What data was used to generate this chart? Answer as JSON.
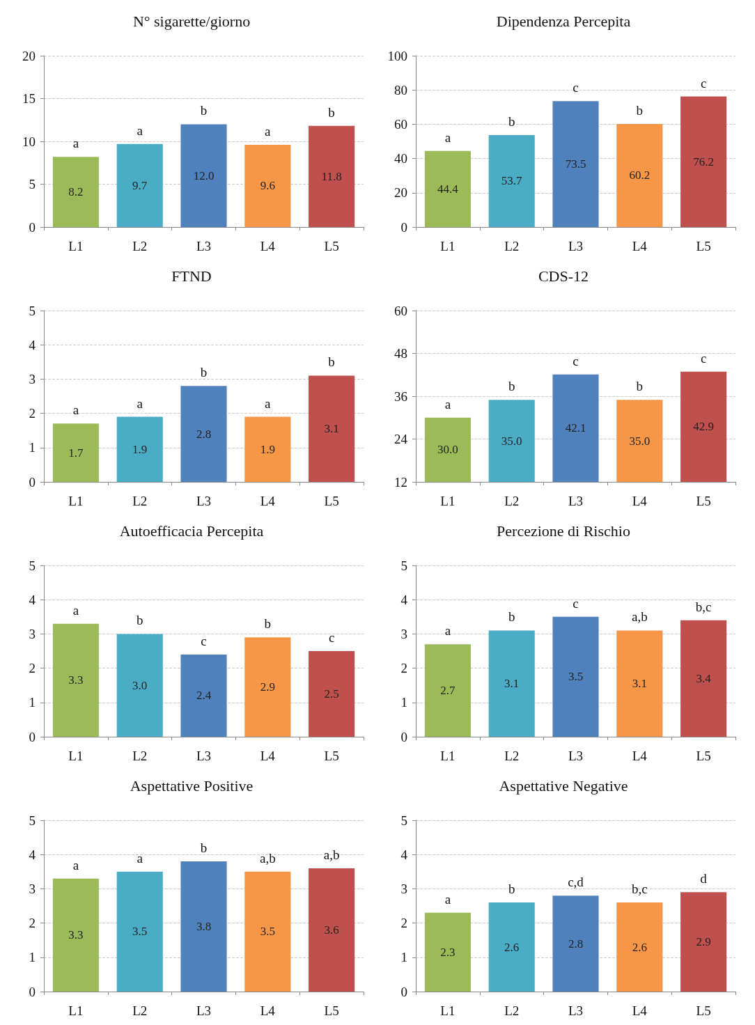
{
  "chart_data": [
    {
      "type": "bar",
      "title": "N° sigarette/giorno",
      "categories": [
        "L1",
        "L2",
        "L3",
        "L4",
        "L5"
      ],
      "values": [
        8.2,
        9.7,
        12.0,
        9.6,
        11.8
      ],
      "value_labels": [
        "8.2",
        "9.7",
        "12.0",
        "9.6",
        "11.8"
      ],
      "colors": [
        "#9bbb59",
        "#4bacc6",
        "#4f81bd",
        "#f79646",
        "#c0504d"
      ],
      "ylim": [
        0,
        20
      ],
      "yticks": [
        0,
        5,
        10,
        15,
        20
      ],
      "grid": "y",
      "annotations": [
        {
          "text": "a",
          "x": "L1",
          "y": 8.2
        },
        {
          "text": "a",
          "x": "L2",
          "y": 9.7
        },
        {
          "text": "b",
          "x": "L3",
          "y": 12.0
        },
        {
          "text": "a",
          "x": "L4",
          "y": 9.6
        },
        {
          "text": "b",
          "x": "L5",
          "y": 11.8
        }
      ]
    },
    {
      "type": "bar",
      "title": "Dipendenza Percepita",
      "categories": [
        "L1",
        "L2",
        "L3",
        "L4",
        "L5"
      ],
      "values": [
        44.4,
        53.7,
        73.5,
        60.2,
        76.2
      ],
      "value_labels": [
        "44.4",
        "53.7",
        "73.5",
        "60.2",
        "76.2"
      ],
      "colors": [
        "#9bbb59",
        "#4bacc6",
        "#4f81bd",
        "#f79646",
        "#c0504d"
      ],
      "ylim": [
        0,
        100
      ],
      "yticks": [
        0,
        20,
        40,
        60,
        80,
        100
      ],
      "grid": "y",
      "annotations": [
        {
          "text": "a",
          "x": "L1",
          "y": 44.4
        },
        {
          "text": "b",
          "x": "L2",
          "y": 53.7
        },
        {
          "text": "c",
          "x": "L3",
          "y": 73.5
        },
        {
          "text": "b",
          "x": "L4",
          "y": 60.2
        },
        {
          "text": "c",
          "x": "L5",
          "y": 76.2
        }
      ]
    },
    {
      "type": "bar",
      "title": "FTND",
      "categories": [
        "L1",
        "L2",
        "L3",
        "L4",
        "L5"
      ],
      "values": [
        1.7,
        1.9,
        2.8,
        1.9,
        3.1
      ],
      "value_labels": [
        "1.7",
        "1.9",
        "2.8",
        "1.9",
        "3.1"
      ],
      "colors": [
        "#9bbb59",
        "#4bacc6",
        "#4f81bd",
        "#f79646",
        "#c0504d"
      ],
      "ylim": [
        0,
        5
      ],
      "yticks": [
        0,
        1,
        2,
        3,
        4,
        5
      ],
      "grid": "y",
      "annotations": [
        {
          "text": "a",
          "x": "L1",
          "y": 1.7
        },
        {
          "text": "a",
          "x": "L2",
          "y": 1.9
        },
        {
          "text": "b",
          "x": "L3",
          "y": 2.8
        },
        {
          "text": "a",
          "x": "L4",
          "y": 1.9
        },
        {
          "text": "b",
          "x": "L5",
          "y": 3.1
        }
      ]
    },
    {
      "type": "bar",
      "title": "CDS-12",
      "categories": [
        "L1",
        "L2",
        "L3",
        "L4",
        "L5"
      ],
      "values": [
        30.0,
        35.0,
        42.1,
        35.0,
        42.9
      ],
      "value_labels": [
        "30.0",
        "35.0",
        "42.1",
        "35.0",
        "42.9"
      ],
      "colors": [
        "#9bbb59",
        "#4bacc6",
        "#4f81bd",
        "#f79646",
        "#c0504d"
      ],
      "ylim": [
        12,
        60
      ],
      "yticks": [
        12,
        24,
        36,
        48,
        60
      ],
      "grid": "y",
      "annotations": [
        {
          "text": "a",
          "x": "L1",
          "y": 30.0
        },
        {
          "text": "b",
          "x": "L2",
          "y": 35.0
        },
        {
          "text": "c",
          "x": "L3",
          "y": 42.1
        },
        {
          "text": "b",
          "x": "L4",
          "y": 35.0
        },
        {
          "text": "c",
          "x": "L5",
          "y": 42.9
        }
      ]
    },
    {
      "type": "bar",
      "title": "Autoefficacia Percepita",
      "categories": [
        "L1",
        "L2",
        "L3",
        "L4",
        "L5"
      ],
      "values": [
        3.3,
        3.0,
        2.4,
        2.9,
        2.5
      ],
      "value_labels": [
        "3.3",
        "3.0",
        "2.4",
        "2.9",
        "2.5"
      ],
      "colors": [
        "#9bbb59",
        "#4bacc6",
        "#4f81bd",
        "#f79646",
        "#c0504d"
      ],
      "ylim": [
        0,
        5
      ],
      "yticks": [
        0,
        1,
        2,
        3,
        4,
        5
      ],
      "grid": "y",
      "annotations": [
        {
          "text": "a",
          "x": "L1",
          "y": 3.3
        },
        {
          "text": "b",
          "x": "L2",
          "y": 3.0
        },
        {
          "text": "c",
          "x": "L3",
          "y": 2.4
        },
        {
          "text": "b",
          "x": "L4",
          "y": 2.9
        },
        {
          "text": "c",
          "x": "L5",
          "y": 2.5
        }
      ]
    },
    {
      "type": "bar",
      "title": "Percezione di Rischio",
      "categories": [
        "L1",
        "L2",
        "L3",
        "L4",
        "L5"
      ],
      "values": [
        2.7,
        3.1,
        3.5,
        3.1,
        3.4
      ],
      "value_labels": [
        "2.7",
        "3.1",
        "3.5",
        "3.1",
        "3.4"
      ],
      "colors": [
        "#9bbb59",
        "#4bacc6",
        "#4f81bd",
        "#f79646",
        "#c0504d"
      ],
      "ylim": [
        0,
        5
      ],
      "yticks": [
        0,
        1,
        2,
        3,
        4,
        5
      ],
      "grid": "y",
      "annotations": [
        {
          "text": "a",
          "x": "L1",
          "y": 2.7
        },
        {
          "text": "b",
          "x": "L2",
          "y": 3.1
        },
        {
          "text": "c",
          "x": "L3",
          "y": 3.5
        },
        {
          "text": "a,b",
          "x": "L4",
          "y": 3.1
        },
        {
          "text": "b,c",
          "x": "L5",
          "y": 3.4
        }
      ]
    },
    {
      "type": "bar",
      "title": "Aspettative Positive",
      "categories": [
        "L1",
        "L2",
        "L3",
        "L4",
        "L5"
      ],
      "values": [
        3.3,
        3.5,
        3.8,
        3.5,
        3.6
      ],
      "value_labels": [
        "3.3",
        "3.5",
        "3.8",
        "3.5",
        "3.6"
      ],
      "colors": [
        "#9bbb59",
        "#4bacc6",
        "#4f81bd",
        "#f79646",
        "#c0504d"
      ],
      "ylim": [
        0,
        5
      ],
      "yticks": [
        0,
        1,
        2,
        3,
        4,
        5
      ],
      "grid": "y",
      "annotations": [
        {
          "text": "a",
          "x": "L1",
          "y": 3.3
        },
        {
          "text": "a",
          "x": "L2",
          "y": 3.5
        },
        {
          "text": "b",
          "x": "L3",
          "y": 3.8
        },
        {
          "text": "a,b",
          "x": "L4",
          "y": 3.5
        },
        {
          "text": "a,b",
          "x": "L5",
          "y": 3.6
        }
      ]
    },
    {
      "type": "bar",
      "title": "Aspettative Negative",
      "categories": [
        "L1",
        "L2",
        "L3",
        "L4",
        "L5"
      ],
      "values": [
        2.3,
        2.6,
        2.8,
        2.6,
        2.9
      ],
      "value_labels": [
        "2.3",
        "2.6",
        "2.8",
        "2.6",
        "2.9"
      ],
      "colors": [
        "#9bbb59",
        "#4bacc6",
        "#4f81bd",
        "#f79646",
        "#c0504d"
      ],
      "ylim": [
        0,
        5
      ],
      "yticks": [
        0,
        1,
        2,
        3,
        4,
        5
      ],
      "grid": "y",
      "annotations": [
        {
          "text": "a",
          "x": "L1",
          "y": 2.3
        },
        {
          "text": "b",
          "x": "L2",
          "y": 2.6
        },
        {
          "text": "c,d",
          "x": "L3",
          "y": 2.8
        },
        {
          "text": "b,c",
          "x": "L4",
          "y": 2.6
        },
        {
          "text": "d",
          "x": "L5",
          "y": 2.9
        }
      ]
    }
  ]
}
